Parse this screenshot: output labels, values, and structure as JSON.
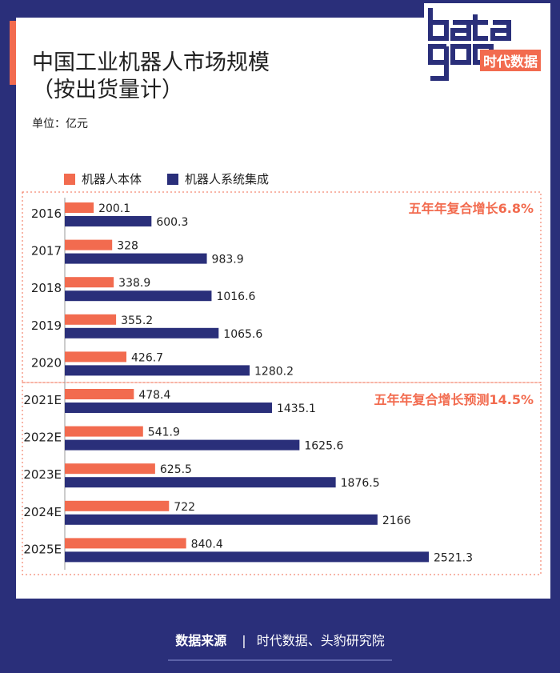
{
  "title": "中国工业机器人市场规模\n（按出货量计）",
  "unit": "单位：亿元",
  "logo": {
    "word": "data\ngoo",
    "badge": "时代数据"
  },
  "colors": {
    "body": "#f26b4f",
    "integration": "#2a2f7a",
    "frame": "#2a2f7a"
  },
  "legend": [
    {
      "name": "机器人本体",
      "color": "#f26b4f"
    },
    {
      "name": "机器人系统集成",
      "color": "#2a2f7a"
    }
  ],
  "annotations": {
    "historical_cagr": "五年年复合增长6.8%",
    "forecast_cagr": "五年年复合增长预测14.5%"
  },
  "footer": {
    "label": "数据来源",
    "sep": "|",
    "sources": "时代数据、头豹研究院"
  },
  "chart_data": {
    "type": "bar",
    "orientation": "horizontal",
    "categories": [
      "2016",
      "2017",
      "2018",
      "2019",
      "2020",
      "2021E",
      "2022E",
      "2023E",
      "2024E",
      "2025E"
    ],
    "series": [
      {
        "name": "机器人本体",
        "values": [
          200.1,
          328,
          338.9,
          355.2,
          426.7,
          478.4,
          541.9,
          625.5,
          722,
          840.4
        ]
      },
      {
        "name": "机器人系统集成",
        "values": [
          600.3,
          983.9,
          1016.6,
          1065.6,
          1280.2,
          1435.1,
          1625.6,
          1876.5,
          2166,
          2521.3
        ]
      }
    ],
    "value_labels": {
      "机器人本体": [
        "200.1",
        "328",
        "338.9",
        "355.2",
        "426.7",
        "478.4",
        "541.9",
        "625.5",
        "722",
        "840.4"
      ],
      "机器人系统集成": [
        "600.3",
        "983.9",
        "1016.6",
        "1065.6",
        "1280.2",
        "1435.1",
        "1625.6",
        "1876.5",
        "2166",
        "2521.3"
      ]
    },
    "title": "中国工业机器人市场规模（按出货量计）",
    "xlabel": "",
    "ylabel": "",
    "xlim": [
      0,
      2521.3
    ],
    "groups": [
      {
        "name": "historical",
        "categories": [
          "2016",
          "2017",
          "2018",
          "2019",
          "2020"
        ]
      },
      {
        "name": "forecast",
        "categories": [
          "2021E",
          "2022E",
          "2023E",
          "2024E",
          "2025E"
        ]
      }
    ]
  }
}
